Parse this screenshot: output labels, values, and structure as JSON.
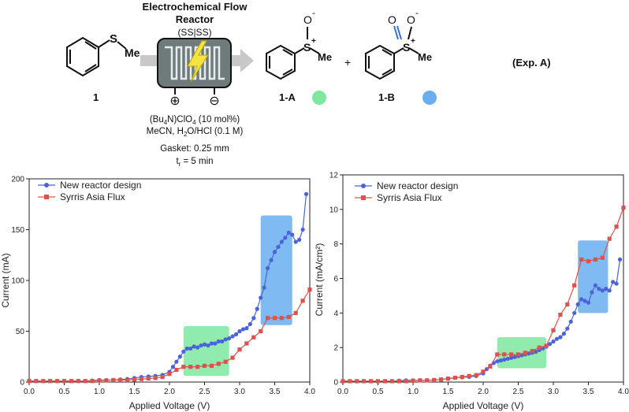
{
  "scheme": {
    "reactor_title": "Electrochemical Flow",
    "reactor_title2": "Reactor",
    "reactor_config": "(SS|SS)",
    "sulfur_label": "S",
    "methyl_label": "Me",
    "oxygen_label": "O",
    "minus_sign": "-",
    "plus_sign": "+",
    "compound_1": "1",
    "compound_1A": "1-A",
    "compound_1B": "1-B",
    "plus_between": "+",
    "experiment": "(Exp. A)",
    "electrolyte": "(Bu4N)ClO4 (10 mol%)",
    "solvent": "MeCN, H2O/HCl (0.1 M)",
    "gasket": "Gasket: 0.25 mm",
    "residence": "tr = 5 min",
    "anode_symbol": "⊕",
    "cathode_symbol": "⊖",
    "color_1A": "#7fe8a0",
    "color_1B": "#6aaef0"
  },
  "chart_data": [
    {
      "type": "line",
      "xlabel": "Applied Voltage (V)",
      "ylabel": "Current (mA)",
      "xlim": [
        0,
        4.0
      ],
      "ylim": [
        0,
        200
      ],
      "xticks": [
        "0.0",
        "0.5",
        "1.0",
        "1.5",
        "2.0",
        "2.5",
        "3.0",
        "3.5",
        "4.0"
      ],
      "yticks": [
        "0",
        "50",
        "100",
        "150",
        "200"
      ],
      "highlights": [
        {
          "name": "1-A region",
          "x": [
            2.2,
            2.85
          ],
          "y": [
            6,
            55
          ],
          "color": "#7fe8a0"
        },
        {
          "name": "1-B region",
          "x": [
            3.3,
            3.75
          ],
          "y": [
            56,
            164
          ],
          "color": "#6aaef0"
        }
      ],
      "series": [
        {
          "name": "New reactor design",
          "color": "#4a63d6",
          "marker": "circle",
          "x": [
            0,
            0.1,
            0.2,
            0.3,
            0.4,
            0.5,
            0.6,
            0.7,
            0.8,
            0.9,
            1.0,
            1.1,
            1.2,
            1.3,
            1.4,
            1.5,
            1.6,
            1.7,
            1.8,
            1.9,
            2.0,
            2.05,
            2.1,
            2.15,
            2.2,
            2.25,
            2.3,
            2.35,
            2.4,
            2.45,
            2.5,
            2.55,
            2.6,
            2.65,
            2.7,
            2.75,
            2.8,
            2.85,
            2.9,
            2.95,
            3.0,
            3.05,
            3.1,
            3.15,
            3.2,
            3.25,
            3.3,
            3.35,
            3.4,
            3.45,
            3.5,
            3.55,
            3.6,
            3.65,
            3.7,
            3.75,
            3.8,
            3.85,
            3.9,
            3.95
          ],
          "y": [
            1,
            1,
            1,
            1,
            1,
            1,
            1,
            1,
            1,
            1.5,
            2,
            2,
            2,
            2.5,
            3,
            4,
            5,
            5.5,
            6,
            7,
            10,
            15,
            20,
            25,
            30,
            33,
            33,
            35,
            34,
            36,
            37,
            36,
            38,
            38,
            40,
            40,
            42,
            43,
            45,
            47,
            50,
            52,
            53,
            57,
            63,
            72,
            83,
            93,
            112,
            120,
            128,
            133,
            138,
            142,
            147,
            145,
            138,
            140,
            150,
            185
          ]
        },
        {
          "name": "Syrris Asia Flux",
          "color": "#d9534f",
          "marker": "square",
          "x": [
            0,
            0.1,
            0.2,
            0.3,
            0.4,
            0.5,
            0.6,
            0.7,
            0.8,
            0.9,
            1.0,
            1.1,
            1.2,
            1.3,
            1.4,
            1.5,
            1.6,
            1.7,
            1.8,
            1.9,
            2.0,
            2.1,
            2.2,
            2.3,
            2.4,
            2.5,
            2.6,
            2.7,
            2.8,
            2.9,
            3.0,
            3.1,
            3.2,
            3.3,
            3.4,
            3.5,
            3.6,
            3.7,
            3.8,
            3.9,
            4.0
          ],
          "y": [
            1,
            1,
            1,
            1,
            1,
            1,
            1,
            1,
            1,
            1,
            1.5,
            1.5,
            2,
            2,
            2,
            2.5,
            3,
            3.5,
            4,
            5,
            8,
            12,
            15,
            15,
            15,
            16,
            16,
            18,
            20,
            24,
            32,
            38,
            44,
            50,
            63,
            63,
            63,
            64,
            68,
            80,
            91
          ]
        }
      ]
    },
    {
      "type": "line",
      "xlabel": "Applied Voltage (V)",
      "ylabel": "Current (mA/cm²)",
      "xlim": [
        0,
        4.0
      ],
      "ylim": [
        0,
        12
      ],
      "xticks": [
        "0.0",
        "0.5",
        "1.0",
        "1.5",
        "2.0",
        "2.5",
        "3.0",
        "3.5",
        "4.0"
      ],
      "yticks": [
        "0",
        "2",
        "4",
        "6",
        "8",
        "10",
        "12"
      ],
      "highlights": [
        {
          "name": "1-A region",
          "x": [
            2.2,
            2.9
          ],
          "y": [
            0.8,
            2.6
          ],
          "color": "#7fe8a0"
        },
        {
          "name": "1-B region",
          "x": [
            3.35,
            3.78
          ],
          "y": [
            4.0,
            8.2
          ],
          "color": "#6aaef0"
        }
      ],
      "series": [
        {
          "name": "New reactor design",
          "color": "#4a63d6",
          "marker": "circle",
          "x": [
            0,
            0.1,
            0.2,
            0.3,
            0.4,
            0.5,
            0.6,
            0.7,
            0.8,
            0.9,
            1.0,
            1.1,
            1.2,
            1.3,
            1.4,
            1.5,
            1.6,
            1.7,
            1.8,
            1.9,
            2.0,
            2.05,
            2.1,
            2.15,
            2.2,
            2.25,
            2.3,
            2.35,
            2.4,
            2.45,
            2.5,
            2.55,
            2.6,
            2.65,
            2.7,
            2.75,
            2.8,
            2.85,
            2.9,
            2.95,
            3.0,
            3.05,
            3.1,
            3.15,
            3.2,
            3.25,
            3.3,
            3.35,
            3.4,
            3.45,
            3.5,
            3.55,
            3.6,
            3.65,
            3.7,
            3.75,
            3.8,
            3.85,
            3.9,
            3.95
          ],
          "y": [
            0.05,
            0.05,
            0.05,
            0.05,
            0.05,
            0.05,
            0.05,
            0.05,
            0.08,
            0.1,
            0.1,
            0.1,
            0.1,
            0.12,
            0.15,
            0.2,
            0.25,
            0.28,
            0.3,
            0.35,
            0.5,
            0.75,
            0.95,
            1.1,
            1.2,
            1.25,
            1.3,
            1.35,
            1.4,
            1.45,
            1.5,
            1.55,
            1.6,
            1.65,
            1.7,
            1.75,
            1.85,
            1.95,
            2.05,
            2.2,
            2.35,
            2.5,
            2.6,
            2.8,
            3.1,
            3.5,
            4.0,
            4.5,
            4.8,
            4.7,
            4.6,
            5.2,
            5.6,
            5.4,
            5.3,
            5.4,
            5.3,
            5.8,
            5.7,
            7.1
          ]
        },
        {
          "name": "Syrris Asia Flux",
          "color": "#d9534f",
          "marker": "square",
          "x": [
            0,
            0.1,
            0.2,
            0.3,
            0.4,
            0.5,
            0.6,
            0.7,
            0.8,
            0.9,
            1.0,
            1.1,
            1.2,
            1.3,
            1.4,
            1.5,
            1.6,
            1.7,
            1.8,
            1.9,
            2.0,
            2.1,
            2.2,
            2.3,
            2.4,
            2.5,
            2.6,
            2.7,
            2.8,
            2.9,
            3.0,
            3.1,
            3.2,
            3.3,
            3.4,
            3.5,
            3.6,
            3.7,
            3.8,
            3.9,
            4.0
          ],
          "y": [
            0.05,
            0.05,
            0.05,
            0.05,
            0.05,
            0.05,
            0.05,
            0.05,
            0.05,
            0.05,
            0.08,
            0.1,
            0.1,
            0.12,
            0.15,
            0.2,
            0.25,
            0.3,
            0.35,
            0.4,
            0.6,
            0.9,
            1.6,
            1.6,
            1.6,
            1.6,
            1.7,
            1.8,
            2.0,
            2.1,
            3.0,
            3.9,
            4.5,
            5.6,
            7.1,
            7.0,
            7.1,
            7.2,
            8.3,
            9.0,
            10.1
          ]
        }
      ]
    }
  ]
}
